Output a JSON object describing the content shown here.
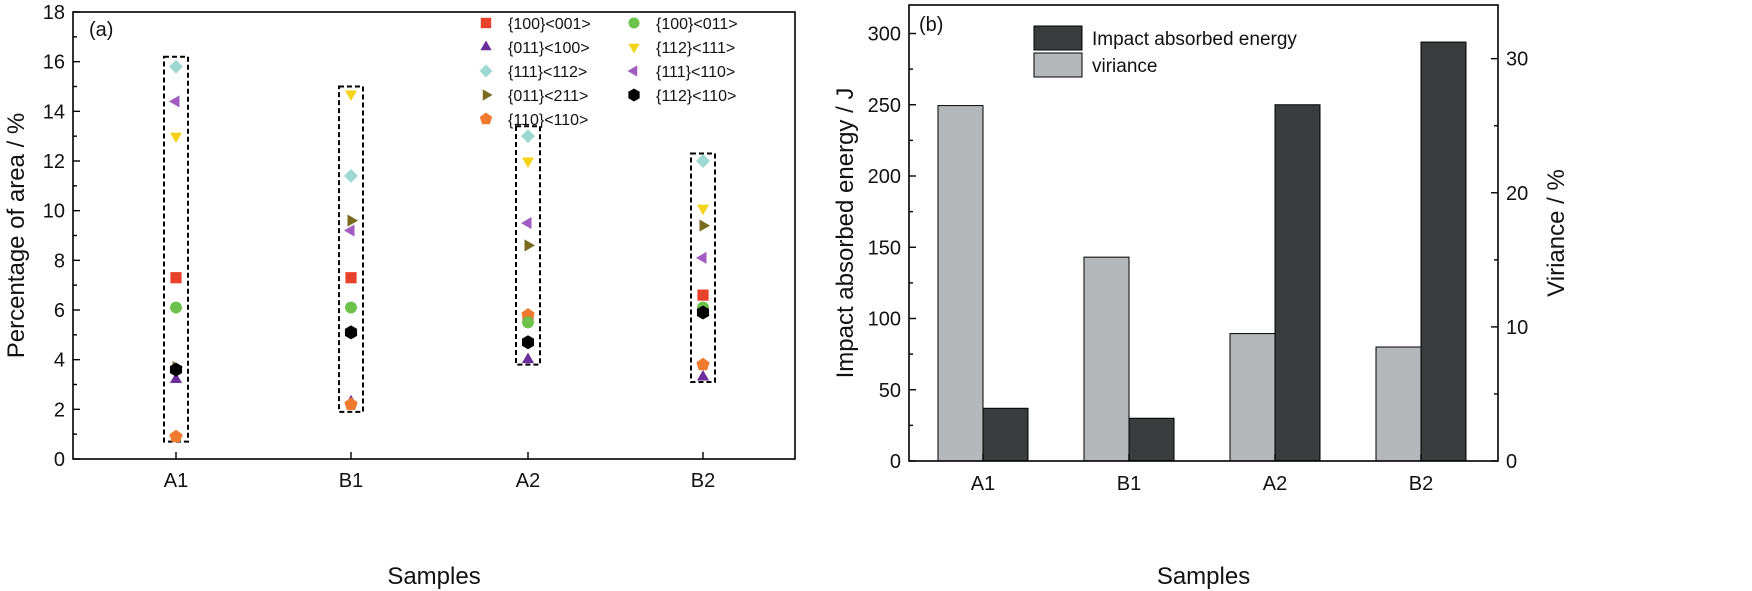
{
  "chart_data": [
    {
      "type": "scatter",
      "panel_label": "(a)",
      "xlabel": "Samples",
      "ylabel": "Percentage of area / %",
      "categories": [
        "A1",
        "B1",
        "A2",
        "B2"
      ],
      "ylim": [
        0,
        18
      ],
      "yticks": [
        "0",
        "2",
        "4",
        "6",
        "8",
        "10",
        "12",
        "14",
        "16",
        "18"
      ],
      "legend_position": "top-right",
      "series": [
        {
          "name": "{100}<001>",
          "marker": "square",
          "color": "#e8412c",
          "values": [
            7.3,
            7.3,
            5.7,
            6.6
          ]
        },
        {
          "name": "{011}<100>",
          "marker": "triangle-up",
          "color": "#6a2d9a",
          "values": [
            3.2,
            2.3,
            4.0,
            3.3
          ]
        },
        {
          "name": "{111}<112>",
          "marker": "diamond",
          "color": "#9dd9d2",
          "values": [
            15.8,
            11.4,
            13.0,
            12.0
          ]
        },
        {
          "name": "{011}<211>",
          "marker": "triangle-right",
          "color": "#7a6a1e",
          "values": [
            3.7,
            9.6,
            8.6,
            9.4
          ]
        },
        {
          "name": "{110}<110>",
          "marker": "pentagon",
          "color": "#f07b2e",
          "values": [
            0.9,
            2.2,
            5.8,
            3.8
          ]
        },
        {
          "name": "{100}<011>",
          "marker": "circle",
          "color": "#6cc24a",
          "values": [
            6.1,
            6.1,
            5.5,
            6.1
          ]
        },
        {
          "name": "{112}<111>",
          "marker": "triangle-down",
          "color": "#f5d31a",
          "values": [
            13.0,
            14.7,
            12.0,
            10.1
          ]
        },
        {
          "name": "{111}<110>",
          "marker": "triangle-left",
          "color": "#a05cc0",
          "values": [
            14.4,
            9.2,
            9.5,
            8.1
          ]
        },
        {
          "name": "{112}<110>",
          "marker": "hexagon",
          "color": "#000000",
          "values": [
            3.6,
            5.1,
            4.7,
            5.9
          ]
        }
      ],
      "ranges": [
        [
          0.7,
          16.2
        ],
        [
          1.9,
          15.0
        ],
        [
          3.8,
          13.4
        ],
        [
          3.1,
          12.3
        ]
      ]
    },
    {
      "type": "bar",
      "panel_label": "(b)",
      "xlabel": "Samples",
      "ylabel": "Impact absorbed energy / J",
      "y2label": "Viriance / %",
      "categories": [
        "A1",
        "B1",
        "A2",
        "B2"
      ],
      "ylim": [
        0,
        320
      ],
      "yticks": [
        "0",
        "50",
        "100",
        "150",
        "200",
        "250",
        "300"
      ],
      "y2lim": [
        0,
        34
      ],
      "y2ticks": [
        "0",
        "10",
        "20",
        "30"
      ],
      "legend_position": "top",
      "series": [
        {
          "name": "Impact absorbed energy",
          "axis": "left",
          "color": "#3a3c3d",
          "values": [
            37,
            30,
            250,
            294
          ]
        },
        {
          "name": "viriance",
          "axis": "right",
          "color": "#b4b8ba",
          "values": [
            26.5,
            15.2,
            9.5,
            8.5
          ]
        }
      ]
    }
  ]
}
